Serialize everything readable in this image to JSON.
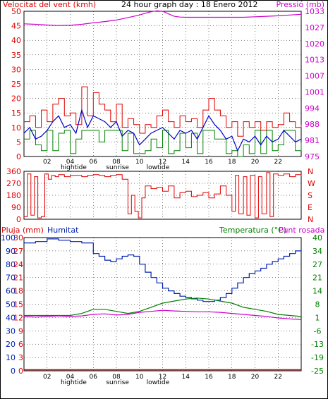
{
  "colors": {
    "wind_avg": "#0000c8",
    "wind_gust": "#e00000",
    "wind_dir_line": "#e00000",
    "wind_min": "#008000",
    "pressure": "#cc00cc",
    "rain": "#e00000",
    "humidity": "#0020b0",
    "temperature": "#008000",
    "dewpoint": "#cc00cc",
    "grid": "#000000",
    "frame": "#000000"
  },
  "chart_data": [
    {
      "type": "line",
      "title": "24 hour graph day : 18 Enero 2012",
      "left_label": "Velocitat del vent (kmh)",
      "right_label": "Pressió (mb)",
      "ylim_left": [
        0,
        50
      ],
      "left_ticks": [
        "0",
        "5",
        "10",
        "15",
        "20",
        "25",
        "30",
        "35",
        "40",
        "45",
        "50"
      ],
      "ylim_right": [
        975,
        1033
      ],
      "right_ticks": [
        "975",
        "981",
        "988",
        "994",
        "1001",
        "1007",
        "1013",
        "1020",
        "1027",
        "1033"
      ],
      "x_ticks": [
        "02",
        "04",
        "06",
        "08",
        "10",
        "12",
        "14",
        "16",
        "18",
        "20",
        "22"
      ],
      "x_events": [
        {
          "label": "hightide",
          "x": 4.3
        },
        {
          "label": "sunrise",
          "x": 8.1
        },
        {
          "label": "lowtide",
          "x": 11.6
        }
      ],
      "grid": true,
      "series": [
        {
          "name": "Pressió",
          "axis": "right",
          "x": [
            0,
            1,
            2,
            3,
            4,
            5,
            6,
            7,
            8,
            9,
            10,
            10.5,
            11,
            11.5,
            12,
            12.5,
            13,
            13.5,
            14,
            15,
            16,
            17,
            18,
            19,
            20,
            21,
            22,
            23,
            24
          ],
          "values": [
            1028,
            1027.8,
            1027.5,
            1027.3,
            1027.4,
            1027.8,
            1028.4,
            1028.9,
            1029.5,
            1030.5,
            1031.5,
            1032.2,
            1032.8,
            1033.2,
            1033,
            1032,
            1031,
            1030.7,
            1030.6,
            1030.6,
            1030.6,
            1030.6,
            1030.6,
            1030.6,
            1030.8,
            1031,
            1031.2,
            1031.5,
            1031.8
          ]
        },
        {
          "name": "Ratxa",
          "axis": "left",
          "x": [
            0,
            0.5,
            1,
            1.5,
            2,
            2.5,
            3,
            3.5,
            4,
            4.5,
            5,
            5.5,
            6,
            6.5,
            7,
            7.5,
            8,
            8.5,
            9,
            9.5,
            10,
            10.5,
            11,
            11.5,
            12,
            12.5,
            13,
            13.5,
            14,
            14.5,
            15,
            15.5,
            16,
            16.5,
            17,
            17.5,
            18,
            18.5,
            19,
            19.5,
            20,
            20.5,
            21,
            21.5,
            22,
            22.5,
            23,
            23.5,
            24
          ],
          "values": [
            12,
            14,
            10,
            16,
            12,
            18,
            20,
            14,
            15,
            11,
            24,
            14,
            22,
            18,
            16,
            12,
            18,
            10,
            13,
            11,
            8,
            11,
            10,
            14,
            16,
            12,
            10,
            14,
            12,
            13,
            10,
            16,
            20,
            16,
            14,
            10,
            12,
            7,
            12,
            10,
            12,
            9,
            12,
            10,
            11,
            15,
            12,
            10,
            11
          ]
        },
        {
          "name": "Mitjana",
          "axis": "left",
          "x": [
            0,
            0.5,
            1,
            1.5,
            2,
            2.5,
            3,
            3.5,
            4,
            4.5,
            5,
            5.5,
            6,
            6.5,
            7,
            7.5,
            8,
            8.5,
            9,
            9.5,
            10,
            10.5,
            11,
            11.5,
            12,
            12.5,
            13,
            13.5,
            14,
            14.5,
            15,
            15.5,
            16,
            16.5,
            17,
            17.5,
            18,
            18.5,
            19,
            19.5,
            20,
            20.5,
            21,
            21.5,
            22,
            22.5,
            23,
            23.5,
            24
          ],
          "values": [
            8,
            10,
            6,
            7,
            9,
            12,
            14,
            10,
            11,
            8,
            16,
            10,
            14,
            13,
            12,
            10,
            12,
            7,
            9,
            8,
            4,
            6,
            8,
            9,
            10,
            8,
            6,
            9,
            8,
            9,
            6,
            10,
            14,
            11,
            9,
            6,
            7,
            2,
            6,
            5,
            7,
            4,
            7,
            5,
            6,
            9,
            7,
            5,
            6
          ]
        },
        {
          "name": "Mínima",
          "axis": "left",
          "x": [
            0,
            0.5,
            1,
            1.5,
            2,
            2.5,
            3,
            3.5,
            4,
            4.5,
            5,
            5.5,
            6,
            6.5,
            7,
            7.5,
            8,
            8.5,
            9,
            9.5,
            10,
            10.5,
            11,
            11.5,
            12,
            12.5,
            13,
            13.5,
            14,
            14.5,
            15,
            15.5,
            16,
            16.5,
            17,
            17.5,
            18,
            18.5,
            19,
            19.5,
            20,
            20.5,
            21,
            21.5,
            22,
            22.5,
            23,
            23.5,
            24
          ],
          "values": [
            6,
            9,
            4,
            2,
            9,
            2,
            8,
            9,
            1,
            6,
            9,
            9,
            9,
            5,
            9,
            9,
            9,
            2,
            8,
            1,
            1,
            2,
            6,
            3,
            9,
            1,
            2,
            8,
            3,
            8,
            1,
            9,
            9,
            6,
            6,
            1,
            2,
            0,
            4,
            1,
            9,
            1,
            9,
            2,
            4,
            9,
            9,
            2,
            5
          ]
        }
      ]
    },
    {
      "type": "line",
      "ylim": [
        0,
        360
      ],
      "left_ticks": [
        "0",
        "90",
        "180",
        "270",
        "360"
      ],
      "right_ticks": [
        "N",
        "W",
        "S",
        "E",
        "N"
      ],
      "grid": true,
      "series": [
        {
          "name": "Direcció",
          "x": [
            0,
            0.3,
            0.6,
            0.9,
            1.2,
            1.5,
            1.8,
            2.1,
            2.4,
            2.7,
            3,
            3.5,
            4,
            4.5,
            5,
            5.5,
            6,
            6.5,
            7,
            7.5,
            8,
            8.5,
            9,
            9.3,
            9.6,
            9.9,
            10.2,
            10.5,
            11,
            11.5,
            12,
            12.5,
            13,
            13.5,
            14,
            14.5,
            15,
            15.5,
            16,
            16.5,
            17,
            17.5,
            18,
            18.3,
            18.6,
            19,
            19.3,
            19.6,
            20,
            20.3,
            20.6,
            21,
            21.3,
            21.6,
            22,
            22.5,
            23,
            23.5,
            24
          ],
          "values": [
            20,
            340,
            30,
            320,
            10,
            20,
            340,
            300,
            330,
            320,
            335,
            320,
            330,
            330,
            320,
            330,
            335,
            330,
            320,
            330,
            335,
            300,
            40,
            180,
            60,
            10,
            160,
            250,
            230,
            240,
            210,
            250,
            160,
            200,
            210,
            170,
            180,
            200,
            160,
            190,
            250,
            180,
            60,
            330,
            40,
            320,
            30,
            330,
            10,
            320,
            40,
            350,
            20,
            340,
            330,
            340,
            320,
            335,
            330
          ]
        }
      ]
    },
    {
      "type": "line",
      "left_label": "Pluja (mm)",
      "left_label2": "Humitat",
      "right_label": "Temperatura (°C)",
      "right_label2": "Punt rosada",
      "ylim_left": [
        0,
        100
      ],
      "left_ticks_hum": [
        "0",
        "10",
        "20",
        "30",
        "40",
        "50",
        "60",
        "70",
        "80",
        "90",
        "100"
      ],
      "left_ticks_rain": [
        "0",
        "3",
        "6",
        "9",
        "12",
        "15",
        "18",
        "21",
        "24",
        "27",
        "30"
      ],
      "ylim_right": [
        -25,
        40
      ],
      "right_ticks": [
        "-25",
        "-19",
        "-13",
        "-6",
        "1",
        "8",
        "14",
        "21",
        "27",
        "34",
        "40"
      ],
      "x_ticks": [
        "02",
        "04",
        "06",
        "08",
        "10",
        "12",
        "14",
        "16",
        "18",
        "20",
        "22"
      ],
      "x_events": [
        {
          "label": "hightide",
          "x": 4.3
        },
        {
          "label": "sunrise",
          "x": 8.1
        },
        {
          "label": "lowtide",
          "x": 11.6
        }
      ],
      "grid": true,
      "series": [
        {
          "name": "Humitat",
          "axis": "left",
          "x": [
            0,
            1,
            2,
            3,
            4,
            5,
            6,
            6.5,
            7,
            7.5,
            8,
            8.5,
            9,
            9.5,
            10,
            10.5,
            11,
            11.5,
            12,
            12.5,
            13,
            13.5,
            14,
            14.5,
            15,
            15.5,
            16,
            16.5,
            17,
            17.5,
            18,
            18.5,
            19,
            19.5,
            20,
            20.5,
            21,
            21.5,
            22,
            22.5,
            23,
            23.5,
            24
          ],
          "values": [
            96,
            97,
            99,
            98,
            97,
            96,
            88,
            86,
            83,
            82,
            84,
            86,
            87,
            86,
            80,
            74,
            70,
            66,
            62,
            60,
            58,
            56,
            55,
            54,
            53,
            52,
            52,
            53,
            55,
            58,
            62,
            66,
            70,
            73,
            75,
            77,
            80,
            82,
            84,
            86,
            88,
            90,
            91
          ]
        },
        {
          "name": "Temperatura",
          "axis": "right",
          "x": [
            0,
            1,
            2,
            3,
            4,
            5,
            6,
            7,
            8,
            9,
            10,
            11,
            12,
            13,
            14,
            15,
            16,
            17,
            18,
            19,
            20,
            21,
            22,
            23,
            24
          ],
          "values": [
            2,
            2,
            2,
            2,
            2,
            3,
            5,
            5,
            4,
            3,
            4,
            6,
            8,
            9,
            10,
            10.5,
            10,
            9,
            8,
            6,
            5,
            4,
            2.5,
            2,
            1.5
          ]
        },
        {
          "name": "Punt rosada",
          "axis": "right",
          "x": [
            0,
            1,
            2,
            3,
            4,
            5,
            6,
            7,
            8,
            9,
            10,
            11,
            12,
            13,
            14,
            15,
            16,
            17,
            18,
            19,
            20,
            21,
            22,
            23,
            24
          ],
          "values": [
            1.5,
            1.2,
            1.5,
            1.8,
            1.5,
            1.8,
            2.5,
            2.8,
            2.2,
            2.5,
            3.5,
            4,
            4.5,
            4.2,
            4,
            3.8,
            3.8,
            3.5,
            3,
            2.5,
            2,
            1.5,
            0.8,
            0.3,
            0
          ]
        },
        {
          "name": "Pluja",
          "axis": "left_rain",
          "x": [
            0,
            24
          ],
          "values": [
            0,
            0
          ]
        }
      ]
    }
  ]
}
